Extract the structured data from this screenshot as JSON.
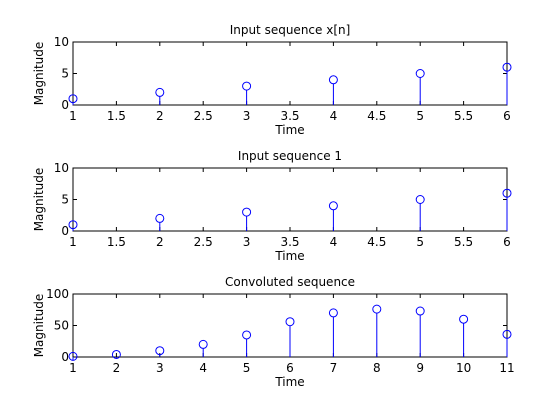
{
  "chart_data": [
    {
      "type": "stem",
      "title": "Input sequence x[n]",
      "xlabel": "Time",
      "ylabel": "Magnitude",
      "xlim": [
        1,
        6
      ],
      "ylim": [
        0,
        10
      ],
      "xticks": [
        "1",
        "1.5",
        "2",
        "2.5",
        "3",
        "3.5",
        "4",
        "4.5",
        "5",
        "5.5",
        "6"
      ],
      "yticks": [
        "0",
        "5",
        "10"
      ],
      "x": [
        1,
        2,
        3,
        4,
        5,
        6
      ],
      "y": [
        1,
        2,
        3,
        4,
        5,
        6
      ],
      "grid": false,
      "color": "#0000ff"
    },
    {
      "type": "stem",
      "title": "Input sequence 1",
      "xlabel": "Time",
      "ylabel": "Magnitude",
      "xlim": [
        1,
        6
      ],
      "ylim": [
        0,
        10
      ],
      "xticks": [
        "1",
        "1.5",
        "2",
        "2.5",
        "3",
        "3.5",
        "4",
        "4.5",
        "5",
        "5.5",
        "6"
      ],
      "yticks": [
        "0",
        "5",
        "10"
      ],
      "x": [
        1,
        2,
        3,
        4,
        5,
        6
      ],
      "y": [
        1,
        2,
        3,
        4,
        5,
        6
      ],
      "grid": false,
      "color": "#0000ff"
    },
    {
      "type": "stem",
      "title": "Convoluted sequence",
      "xlabel": "Time",
      "ylabel": "Magnitude",
      "xlim": [
        1,
        11
      ],
      "ylim": [
        0,
        100
      ],
      "xticks": [
        "1",
        "2",
        "3",
        "4",
        "5",
        "6",
        "7",
        "8",
        "9",
        "10",
        "11"
      ],
      "yticks": [
        "0",
        "50",
        "100"
      ],
      "x": [
        1,
        2,
        3,
        4,
        5,
        6,
        7,
        8,
        9,
        10,
        11
      ],
      "y": [
        1,
        4,
        10,
        20,
        35,
        56,
        70,
        76,
        73,
        60,
        36
      ],
      "grid": false,
      "color": "#0000ff"
    }
  ]
}
